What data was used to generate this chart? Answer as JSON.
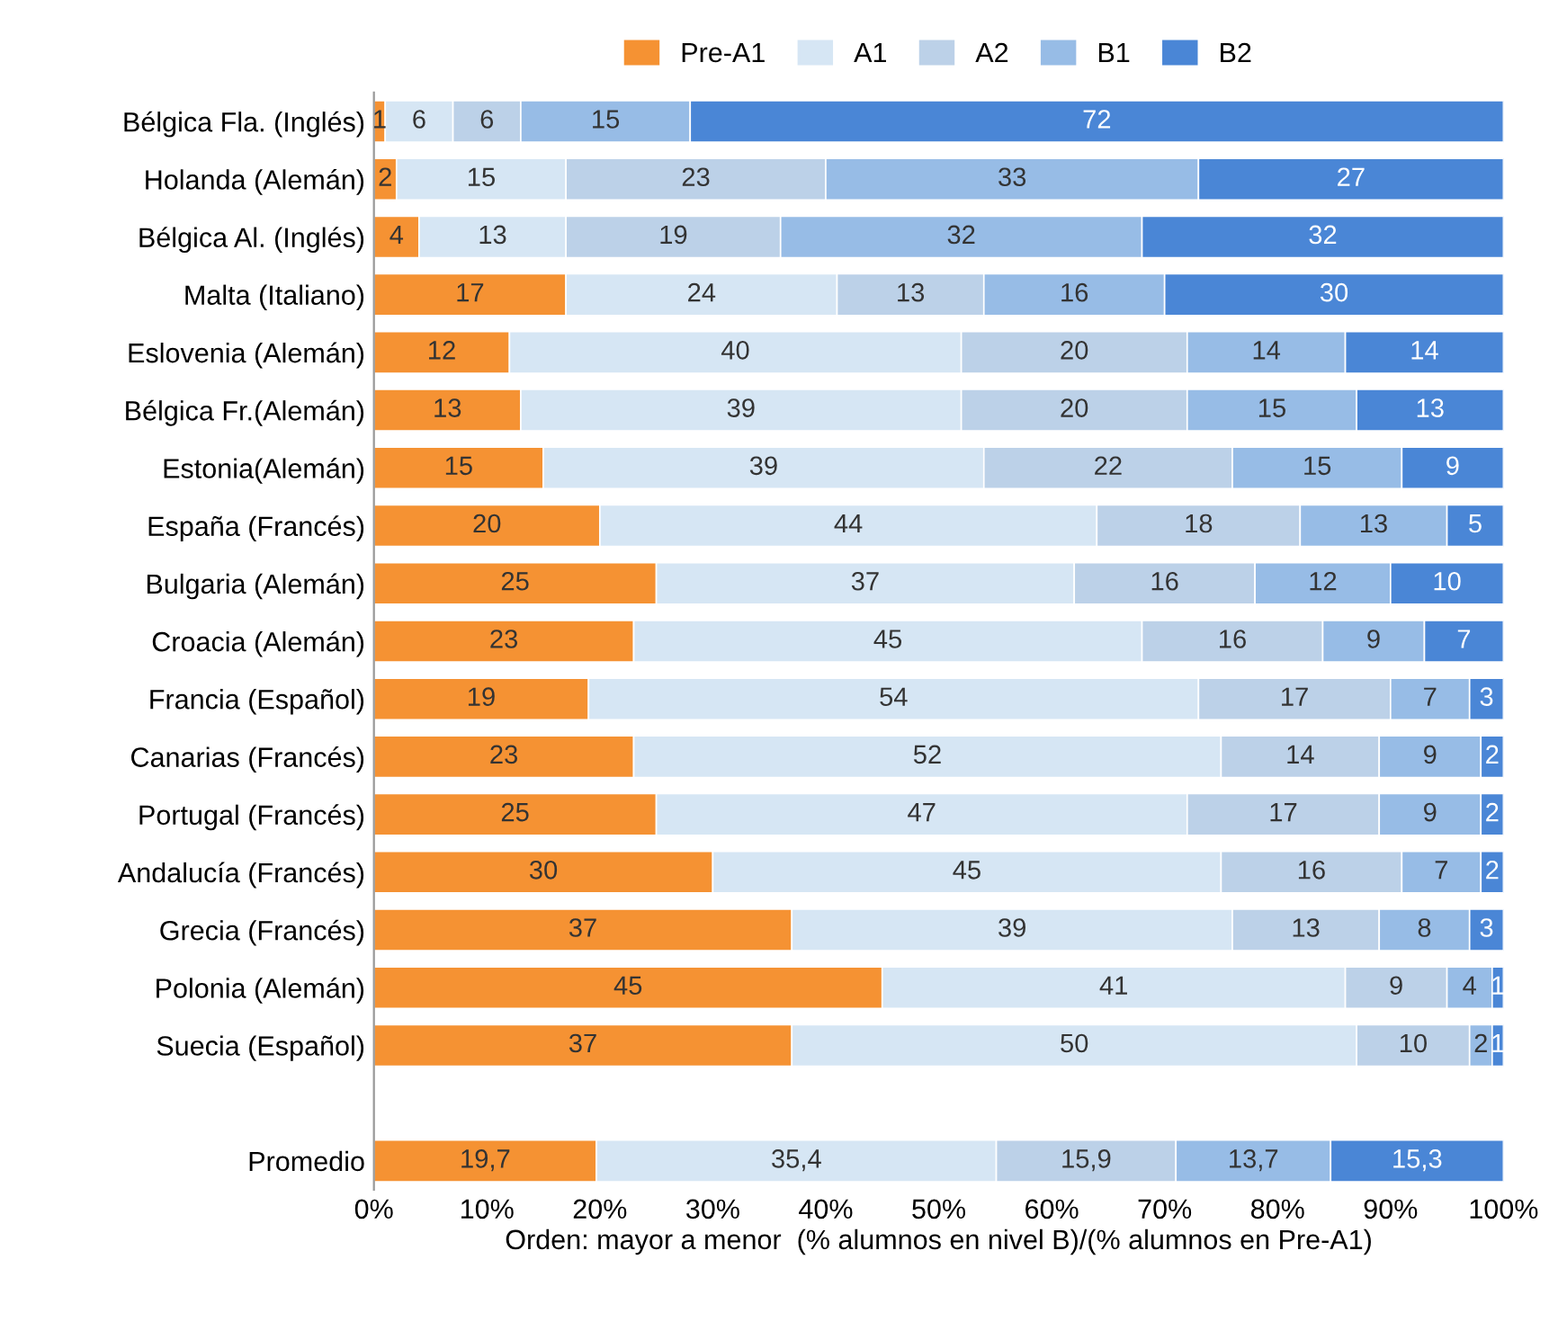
{
  "chart_data": {
    "type": "bar",
    "orientation": "horizontal",
    "stacked": true,
    "xlabel": "Orden: mayor a menor  (% alumnos en nivel B)/(% alumnos en Pre-A1)",
    "categories": [
      "Bélgica Fla. (Inglés)",
      "Holanda (Alemán)",
      "Bélgica Al. (Inglés)",
      "Malta (Italiano)",
      "Eslovenia (Alemán)",
      "Bélgica Fr.(Alemán)",
      "Estonia(Alemán)",
      "España (Francés)",
      "Bulgaria (Alemán)",
      "Croacia (Alemán)",
      "Francia (Español)",
      "Canarias (Francés)",
      "Portugal (Francés)",
      "Andalucía (Francés)",
      "Grecia (Francés)",
      "Polonia (Alemán)",
      "Suecia (Español)",
      null,
      "Promedio"
    ],
    "series": [
      {
        "name": "Pre-A1",
        "color": "#f59233",
        "values": [
          1,
          2,
          4,
          17,
          12,
          13,
          15,
          20,
          25,
          23,
          19,
          23,
          25,
          30,
          37,
          45,
          37,
          null,
          19.7
        ],
        "value_labels": [
          "1",
          "2",
          "4",
          "17",
          "12",
          "13",
          "15",
          "20",
          "25",
          "23",
          "19",
          "23",
          "25",
          "30",
          "37",
          "45",
          "37",
          null,
          "19,7"
        ]
      },
      {
        "name": "A1",
        "color": "#d6e6f4",
        "values": [
          6,
          15,
          13,
          24,
          40,
          39,
          39,
          44,
          37,
          45,
          54,
          52,
          47,
          45,
          39,
          41,
          50,
          null,
          35.4
        ],
        "value_labels": [
          "6",
          "15",
          "13",
          "24",
          "40",
          "39",
          "39",
          "44",
          "37",
          "45",
          "54",
          "52",
          "47",
          "45",
          "39",
          "41",
          "50",
          null,
          "35,4"
        ]
      },
      {
        "name": "A2",
        "color": "#bcd1e8",
        "values": [
          6,
          23,
          19,
          13,
          20,
          20,
          22,
          18,
          16,
          16,
          17,
          14,
          17,
          16,
          13,
          9,
          10,
          null,
          15.9
        ],
        "value_labels": [
          "6",
          "23",
          "19",
          "13",
          "20",
          "20",
          "22",
          "18",
          "16",
          "16",
          "17",
          "14",
          "17",
          "16",
          "13",
          "9",
          "10",
          null,
          "15,9"
        ]
      },
      {
        "name": "B1",
        "color": "#97bce6",
        "values": [
          15,
          33,
          32,
          16,
          14,
          15,
          15,
          13,
          12,
          9,
          7,
          9,
          9,
          7,
          8,
          4,
          2,
          null,
          13.7
        ],
        "value_labels": [
          "15",
          "33",
          "32",
          "16",
          "14",
          "15",
          "15",
          "13",
          "12",
          "9",
          "7",
          "9",
          "9",
          "7",
          "8",
          "4",
          "2",
          null,
          "13,7"
        ]
      },
      {
        "name": "B2",
        "color": "#4a86d6",
        "values": [
          72,
          27,
          32,
          30,
          14,
          13,
          9,
          5,
          10,
          7,
          3,
          2,
          2,
          2,
          3,
          1,
          1,
          null,
          15.3
        ],
        "value_labels": [
          "72",
          "27",
          "32",
          "30",
          "14",
          "13",
          "9",
          "5",
          "10",
          "7",
          "3",
          "2",
          "2",
          "2",
          "3",
          "1",
          "1",
          null,
          "15,3"
        ]
      }
    ],
    "xlim": [
      0,
      100
    ],
    "xticks": [
      {
        "value": 0,
        "label": "0%"
      },
      {
        "value": 10,
        "label": "10%"
      },
      {
        "value": 20,
        "label": "20%"
      },
      {
        "value": 30,
        "label": "30%"
      },
      {
        "value": 40,
        "label": "40%"
      },
      {
        "value": 50,
        "label": "50%"
      },
      {
        "value": 60,
        "label": "60%"
      },
      {
        "value": 70,
        "label": "70%"
      },
      {
        "value": 80,
        "label": "80%"
      },
      {
        "value": 90,
        "label": "90%"
      },
      {
        "value": 100,
        "label": "100%"
      }
    ],
    "legend": "top",
    "grid": false
  }
}
